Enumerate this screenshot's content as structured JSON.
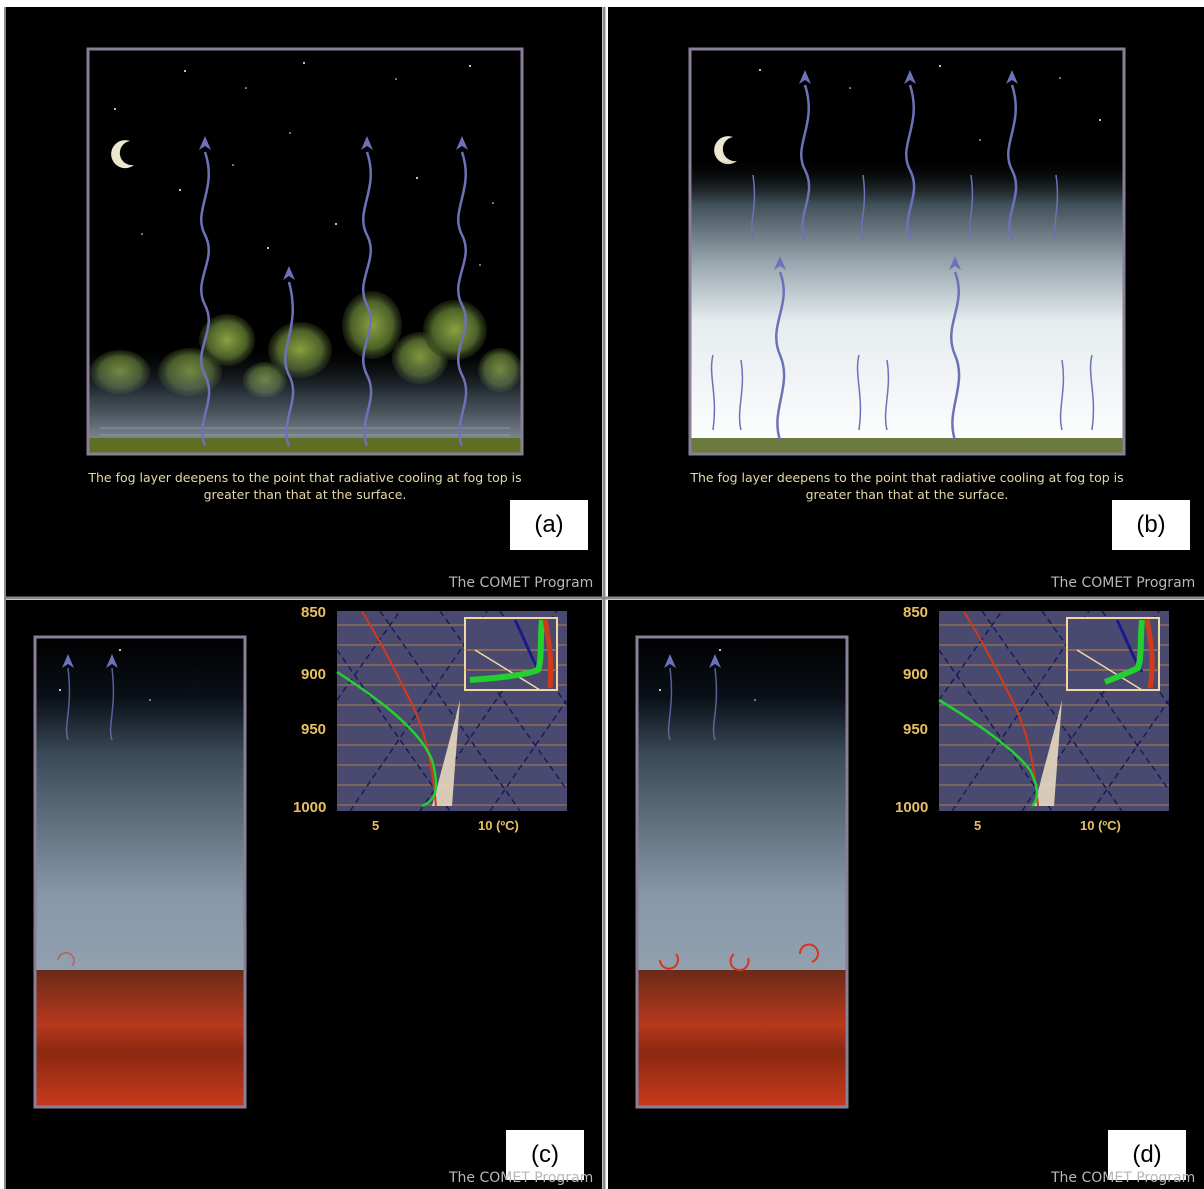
{
  "caption": "The fog layer deepens to the point that radiative cooling at fog top is greater than that at the surface.",
  "credit": "The COMET Program",
  "panels": [
    {
      "tag": "(a)"
    },
    {
      "tag": "(b)"
    },
    {
      "tag": "(c)"
    },
    {
      "tag": "(d)"
    }
  ],
  "skewt": {
    "y_ticks": [
      "850",
      "900",
      "950",
      "1000"
    ],
    "x_ticks": [
      "5",
      "10 (ºC)"
    ]
  },
  "colors": {
    "panel_bg": "#000000",
    "frame": "#8a7f98",
    "radiation_arrow": "#6d72b8",
    "eddy": "#d8341c",
    "temperature_profile": "#d03a1a",
    "dewpoint_profile": "#22d030"
  },
  "icons": [
    "moon-icon",
    "radiation-arrow-icon",
    "turbulent-eddy-icon"
  ]
}
